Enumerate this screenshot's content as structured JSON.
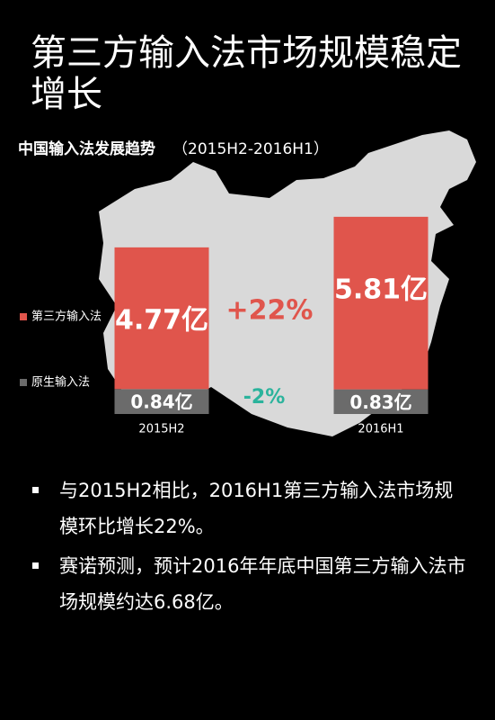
{
  "title": "第三方输入法市场规模稳定增长",
  "chart_data": {
    "type": "stacked_bar",
    "title": "中国输入法发展趋势",
    "subtitle": "（2015H2-2016H1）",
    "categories": [
      "2015H2",
      "2016H1"
    ],
    "series": [
      {
        "name": "原生输入法",
        "color": "#6b6b6b",
        "values": [
          0.84,
          0.83
        ],
        "value_labels": [
          "0.84亿",
          "0.83亿"
        ]
      },
      {
        "name": "第三方输入法",
        "color": "#e0554c",
        "values": [
          4.77,
          5.81
        ],
        "value_labels": [
          "4.77亿",
          "5.81亿"
        ]
      }
    ],
    "annotations": [
      {
        "text": "+22%",
        "color": "#e0554c"
      },
      {
        "text": "-2%",
        "color": "#2bb39c"
      }
    ]
  },
  "bullets": [
    "与2015H2相比，2016H1第三方输入法市场规模环比增长22%。",
    "赛诺预测，预计2016年年底中国第三方输入法市场规模约达6.68亿。"
  ]
}
